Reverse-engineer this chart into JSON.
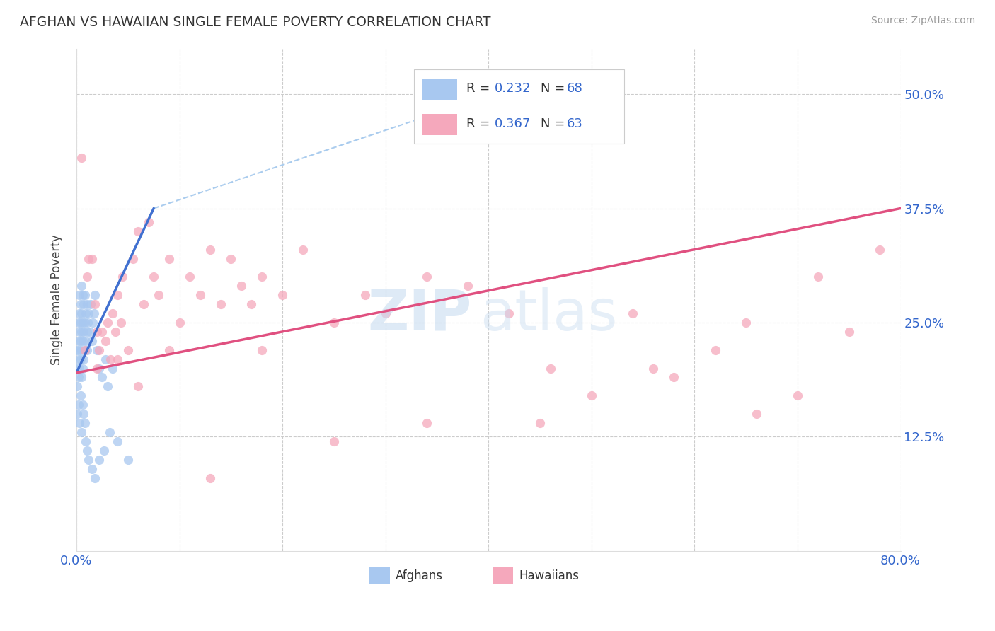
{
  "title": "AFGHAN VS HAWAIIAN SINGLE FEMALE POVERTY CORRELATION CHART",
  "source": "Source: ZipAtlas.com",
  "ylabel": "Single Female Poverty",
  "ytick_labels": [
    "50.0%",
    "37.5%",
    "25.0%",
    "12.5%"
  ],
  "ytick_values": [
    0.5,
    0.375,
    0.25,
    0.125
  ],
  "xlim": [
    0.0,
    0.8
  ],
  "ylim": [
    0.0,
    0.55
  ],
  "afghan_color": "#A8C8F0",
  "hawaiian_color": "#F5A8BC",
  "afghan_line_color": "#4070D0",
  "hawaiian_line_color": "#E05080",
  "dashed_line_color": "#AACCEE",
  "afghans_label": "Afghans",
  "hawaiians_label": "Hawaiians",
  "watermark_zip_color": "#C8DCF0",
  "watermark_atlas_color": "#C8DCF0",
  "legend_r1": "0.232",
  "legend_n1": "68",
  "legend_r2": "0.367",
  "legend_n2": "63",
  "afghan_x": [
    0.001,
    0.001,
    0.001,
    0.002,
    0.002,
    0.002,
    0.002,
    0.003,
    0.003,
    0.003,
    0.003,
    0.003,
    0.004,
    0.004,
    0.004,
    0.004,
    0.005,
    0.005,
    0.005,
    0.005,
    0.005,
    0.006,
    0.006,
    0.006,
    0.006,
    0.007,
    0.007,
    0.007,
    0.008,
    0.008,
    0.008,
    0.009,
    0.009,
    0.01,
    0.01,
    0.01,
    0.011,
    0.012,
    0.013,
    0.014,
    0.015,
    0.016,
    0.017,
    0.018,
    0.02,
    0.022,
    0.025,
    0.028,
    0.03,
    0.035,
    0.001,
    0.002,
    0.003,
    0.004,
    0.005,
    0.006,
    0.007,
    0.008,
    0.009,
    0.01,
    0.012,
    0.015,
    0.018,
    0.022,
    0.027,
    0.032,
    0.04,
    0.05
  ],
  "afghan_y": [
    0.18,
    0.2,
    0.22,
    0.19,
    0.21,
    0.23,
    0.25,
    0.2,
    0.22,
    0.24,
    0.26,
    0.28,
    0.21,
    0.23,
    0.25,
    0.27,
    0.19,
    0.22,
    0.24,
    0.26,
    0.29,
    0.2,
    0.23,
    0.25,
    0.28,
    0.21,
    0.24,
    0.27,
    0.22,
    0.25,
    0.28,
    0.23,
    0.26,
    0.22,
    0.24,
    0.27,
    0.25,
    0.26,
    0.24,
    0.27,
    0.23,
    0.25,
    0.26,
    0.28,
    0.22,
    0.2,
    0.19,
    0.21,
    0.18,
    0.2,
    0.15,
    0.16,
    0.14,
    0.17,
    0.13,
    0.16,
    0.15,
    0.14,
    0.12,
    0.11,
    0.1,
    0.09,
    0.08,
    0.1,
    0.11,
    0.13,
    0.12,
    0.1
  ],
  "hawaiian_x": [
    0.005,
    0.008,
    0.01,
    0.012,
    0.015,
    0.018,
    0.02,
    0.022,
    0.025,
    0.028,
    0.03,
    0.033,
    0.035,
    0.038,
    0.04,
    0.043,
    0.045,
    0.05,
    0.055,
    0.06,
    0.065,
    0.07,
    0.075,
    0.08,
    0.09,
    0.1,
    0.11,
    0.12,
    0.13,
    0.14,
    0.15,
    0.16,
    0.17,
    0.18,
    0.2,
    0.22,
    0.25,
    0.28,
    0.3,
    0.34,
    0.38,
    0.42,
    0.46,
    0.5,
    0.54,
    0.58,
    0.62,
    0.66,
    0.7,
    0.75,
    0.02,
    0.04,
    0.06,
    0.09,
    0.13,
    0.18,
    0.25,
    0.34,
    0.45,
    0.56,
    0.65,
    0.72,
    0.78
  ],
  "hawaiian_y": [
    0.43,
    0.22,
    0.3,
    0.32,
    0.32,
    0.27,
    0.24,
    0.22,
    0.24,
    0.23,
    0.25,
    0.21,
    0.26,
    0.24,
    0.28,
    0.25,
    0.3,
    0.22,
    0.32,
    0.35,
    0.27,
    0.36,
    0.3,
    0.28,
    0.32,
    0.25,
    0.3,
    0.28,
    0.33,
    0.27,
    0.32,
    0.29,
    0.27,
    0.3,
    0.28,
    0.33,
    0.25,
    0.28,
    0.26,
    0.3,
    0.29,
    0.26,
    0.2,
    0.17,
    0.26,
    0.19,
    0.22,
    0.15,
    0.17,
    0.24,
    0.2,
    0.21,
    0.18,
    0.22,
    0.08,
    0.22,
    0.12,
    0.14,
    0.14,
    0.2,
    0.25,
    0.3,
    0.33
  ],
  "afghan_line_x": [
    0.0,
    0.075
  ],
  "afghan_line_y": [
    0.195,
    0.375
  ],
  "dashed_line_x": [
    0.075,
    0.43
  ],
  "dashed_line_y": [
    0.375,
    0.51
  ],
  "hawaiian_line_x": [
    0.0,
    0.8
  ],
  "hawaiian_line_y": [
    0.195,
    0.375
  ]
}
